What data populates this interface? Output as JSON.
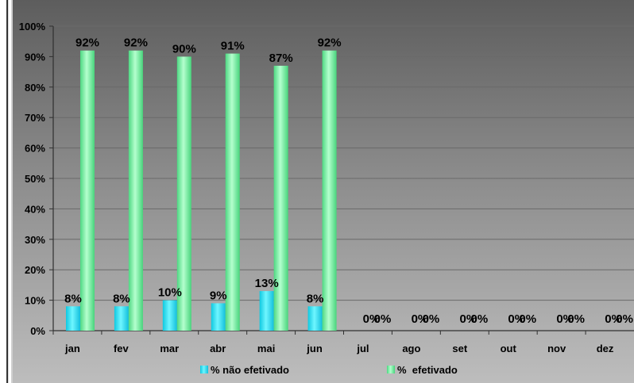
{
  "chart_data": {
    "type": "bar",
    "categories": [
      "jan",
      "fev",
      "mar",
      "abr",
      "mai",
      "jun",
      "jul",
      "ago",
      "set",
      "out",
      "nov",
      "dez"
    ],
    "series": [
      {
        "name": "% não efetivado",
        "values": [
          8,
          8,
          10,
          9,
          13,
          8,
          0,
          0,
          0,
          0,
          0,
          0
        ],
        "labels": [
          "8%",
          "8%",
          "10%",
          "9%",
          "13%",
          "8%",
          "0%",
          "0%",
          "0%",
          "0%",
          "0%",
          "0%"
        ],
        "color": "#2ee6f0"
      },
      {
        "name": "%  efetivado",
        "values": [
          92,
          92,
          90,
          91,
          87,
          92,
          0,
          0,
          0,
          0,
          0,
          0
        ],
        "labels": [
          "92%",
          "92%",
          "90%",
          "91%",
          "87%",
          "92%",
          "0%",
          "0%",
          "0%",
          "0%",
          "0%",
          "0%"
        ],
        "color": "#7ef0a4"
      }
    ],
    "yticks": [
      "0%",
      "10%",
      "20%",
      "30%",
      "40%",
      "50%",
      "60%",
      "70%",
      "80%",
      "90%",
      "100%"
    ],
    "ylim": [
      0,
      100
    ],
    "grid": true,
    "legend": "bottom",
    "title": "",
    "xlabel": "",
    "ylabel": ""
  }
}
